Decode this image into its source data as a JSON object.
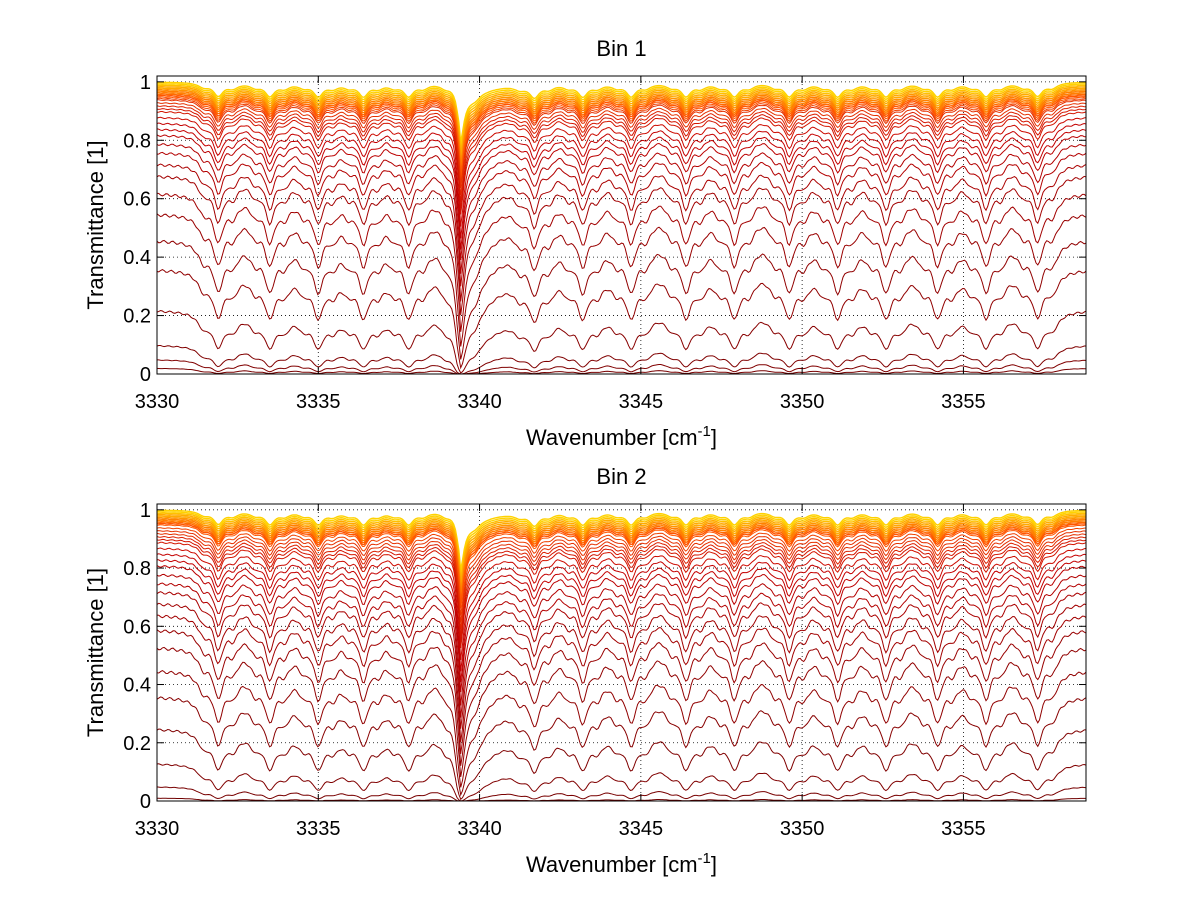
{
  "chart_data": [
    {
      "type": "line",
      "title": "Bin 1",
      "xlabel_main": "Wavenumber [cm",
      "xlabel_sup": "-1",
      "xlabel_end": "]",
      "ylabel": "Transmittance [1]",
      "xlim": [
        3330,
        3358.8
      ],
      "ylim": [
        0,
        1.02
      ],
      "xticks": [
        "3330",
        "3335",
        "3340",
        "3345",
        "3350",
        "3355"
      ],
      "yticks": [
        "0",
        "0.2",
        "0.4",
        "0.6",
        "0.8",
        "1"
      ],
      "grid": true,
      "line_positions": [
        3331.9,
        3333.5,
        3335.0,
        3336.4,
        3337.8,
        3339.4,
        3341.7,
        3343.2,
        3344.7,
        3346.4,
        3347.9,
        3349.6,
        3351.1,
        3352.6,
        3354.2,
        3355.7,
        3357.3
      ],
      "series_baseline_transmittance": [
        1.0,
        0.995,
        0.99,
        0.985,
        0.98,
        0.975,
        0.97,
        0.965,
        0.96,
        0.955,
        0.95,
        0.945,
        0.94,
        0.93,
        0.92,
        0.91,
        0.9,
        0.88,
        0.86,
        0.84,
        0.82,
        0.79,
        0.76,
        0.72,
        0.68,
        0.62,
        0.55,
        0.46,
        0.36,
        0.22,
        0.1,
        0.05,
        0.02,
        0.0
      ],
      "series_colors": [
        "#ffd200",
        "#ffc000",
        "#ffaa00",
        "#ff9500",
        "#ff8000",
        "#ff6a00",
        "#ff5500",
        "#f04000",
        "#e63000",
        "#dd2000",
        "#d41500",
        "#cc0a00",
        "#c40000",
        "#bb0000",
        "#b30000",
        "#aa0000",
        "#a20000",
        "#990000",
        "#910000",
        "#880000",
        "#800000",
        "#780000",
        "#700000"
      ]
    },
    {
      "type": "line",
      "title": "Bin 2",
      "xlabel_main": "Wavenumber [cm",
      "xlabel_sup": "-1",
      "xlabel_end": "]",
      "ylabel": "Transmittance [1]",
      "xlim": [
        3330,
        3358.8
      ],
      "ylim": [
        0,
        1.02
      ],
      "xticks": [
        "3330",
        "3335",
        "3340",
        "3345",
        "3350",
        "3355"
      ],
      "yticks": [
        "0",
        "0.2",
        "0.4",
        "0.6",
        "0.8",
        "1"
      ],
      "grid": true,
      "line_positions": [
        3331.9,
        3333.5,
        3335.0,
        3336.4,
        3337.8,
        3339.4,
        3341.7,
        3343.2,
        3344.7,
        3346.4,
        3347.9,
        3349.6,
        3351.1,
        3352.6,
        3354.2,
        3355.7,
        3357.3
      ],
      "series_baseline_transmittance": [
        1.0,
        0.995,
        0.99,
        0.985,
        0.98,
        0.975,
        0.97,
        0.965,
        0.96,
        0.955,
        0.95,
        0.94,
        0.93,
        0.92,
        0.91,
        0.9,
        0.89,
        0.87,
        0.85,
        0.83,
        0.81,
        0.78,
        0.75,
        0.72,
        0.68,
        0.64,
        0.59,
        0.53,
        0.45,
        0.36,
        0.25,
        0.13,
        0.05,
        0.01
      ],
      "series_colors": [
        "#ffd200",
        "#ffc000",
        "#ffaa00",
        "#ff9500",
        "#ff8000",
        "#ff6a00",
        "#ff5500",
        "#f04000",
        "#e63000",
        "#dd2000",
        "#d41500",
        "#cc0a00",
        "#c40000",
        "#bb0000",
        "#b30000",
        "#aa0000",
        "#a20000",
        "#990000",
        "#910000",
        "#880000",
        "#800000",
        "#780000",
        "#700000"
      ]
    }
  ]
}
